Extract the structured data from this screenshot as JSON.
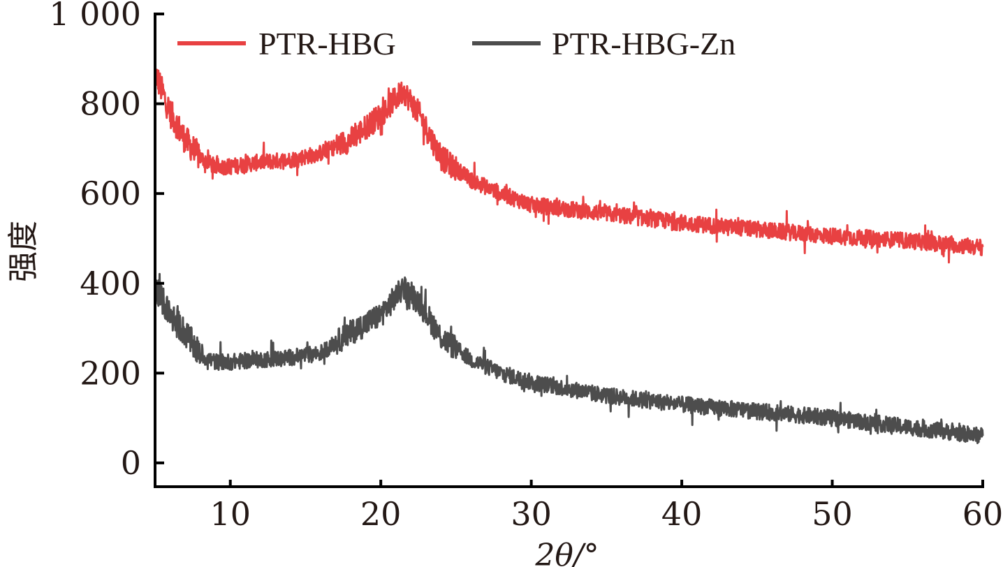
{
  "chart_data": {
    "type": "line",
    "title": "",
    "xlabel": "2θ/°",
    "ylabel": "强度",
    "xlim": [
      5,
      60
    ],
    "ylim": [
      -53,
      1000
    ],
    "x_ticks": [
      10,
      20,
      30,
      40,
      50,
      60
    ],
    "x_tick_labels": [
      "10",
      "20",
      "30",
      "40",
      "50",
      "60"
    ],
    "y_ticks": [
      0,
      200,
      400,
      600,
      800,
      1000
    ],
    "y_tick_labels": [
      "0",
      "200",
      "400",
      "600",
      "800",
      "1 000"
    ],
    "grid": false,
    "legend_position": "top",
    "x": [
      5,
      6,
      7,
      8,
      9,
      10,
      12,
      14,
      16,
      18,
      20,
      21.5,
      22.5,
      24,
      26,
      28,
      30,
      35,
      40,
      45,
      50,
      55,
      60
    ],
    "series": [
      {
        "name": "PTR-HBG",
        "color": "#e84142",
        "values": [
          870,
          780,
          720,
          680,
          660,
          660,
          670,
          675,
          690,
          720,
          775,
          830,
          780,
          680,
          630,
          600,
          575,
          555,
          535,
          520,
          505,
          495,
          480
        ]
      },
      {
        "name": "PTR-HBG-Zn",
        "color": "#4d4d4d",
        "values": [
          390,
          330,
          290,
          240,
          225,
          225,
          230,
          235,
          245,
          290,
          330,
          390,
          360,
          280,
          230,
          200,
          180,
          150,
          130,
          115,
          100,
          80,
          60
        ]
      }
    ]
  }
}
